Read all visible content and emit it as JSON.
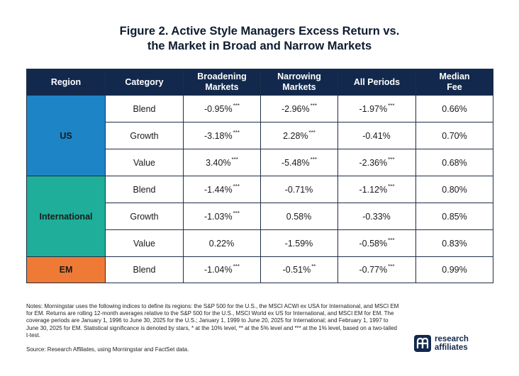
{
  "title": {
    "line1": "Figure 2. Active Style Managers Excess Return vs.",
    "line2": "the Market in Broad and Narrow Markets"
  },
  "table": {
    "headers": {
      "region": "Region",
      "category": "Category",
      "broadening_1": "Broadening",
      "broadening_2": "Markets",
      "narrowing_1": "Narrowing",
      "narrowing_2": "Markets",
      "all_periods": "All Periods",
      "median_1": "Median",
      "median_2": "Fee"
    },
    "regions": {
      "us": {
        "name": "US",
        "color": "#1d84c6"
      },
      "international": {
        "name": "International",
        "color": "#1fae9a"
      },
      "em": {
        "name": "EM",
        "color": "#ef7a36"
      }
    },
    "rows": [
      {
        "category": "Blend",
        "broad": {
          "v": "-0.95%",
          "s": "***"
        },
        "narrow": {
          "v": "-2.96%",
          "s": "***"
        },
        "all": {
          "v": "-1.97%",
          "s": "***"
        },
        "fee": "0.66%"
      },
      {
        "category": "Growth",
        "broad": {
          "v": "-3.18%",
          "s": "***"
        },
        "narrow": {
          "v": "2.28%",
          "s": "***"
        },
        "all": {
          "v": "-0.41%",
          "s": ""
        },
        "fee": "0.70%"
      },
      {
        "category": "Value",
        "broad": {
          "v": "3.40%",
          "s": "***"
        },
        "narrow": {
          "v": "-5.48%",
          "s": "***"
        },
        "all": {
          "v": "-2.36%",
          "s": "***"
        },
        "fee": "0.68%"
      },
      {
        "category": "Blend",
        "broad": {
          "v": "-1.44%",
          "s": "***"
        },
        "narrow": {
          "v": "-0.71%",
          "s": ""
        },
        "all": {
          "v": "-1.12%",
          "s": "***"
        },
        "fee": "0.80%"
      },
      {
        "category": "Growth",
        "broad": {
          "v": "-1.03%",
          "s": "***"
        },
        "narrow": {
          "v": "0.58%",
          "s": ""
        },
        "all": {
          "v": "-0.33%",
          "s": ""
        },
        "fee": "0.85%"
      },
      {
        "category": "Value",
        "broad": {
          "v": "0.22%",
          "s": ""
        },
        "narrow": {
          "v": "-1.59%",
          "s": ""
        },
        "all": {
          "v": "-0.58%",
          "s": "***"
        },
        "fee": "0.83%"
      },
      {
        "category": "Blend",
        "broad": {
          "v": "-1.04%",
          "s": "***"
        },
        "narrow": {
          "v": "-0.51%",
          "s": "**"
        },
        "all": {
          "v": "-0.77%",
          "s": "***"
        },
        "fee": "0.99%"
      }
    ]
  },
  "notes": "Notes: Morningstar uses the following indices to define its regions: the S&P 500 for the U.S., the MSCI ACWI ex USA for International, and MSCI EM for EM. Returns are rolling 12-month averages relative to the S&P 500 for the U.S., MSCI World ex US for International, and MSCI EM for EM. The coverage periods are January 1, 1996 to June 30, 2025 for the U.S.; January 1, 1999 to June 20, 2025 for International; and February 1, 1997 to June 30, 2025 for EM. Statistical significance is denoted by stars, * at the 10% level, ** at the 5% level and *** at the 1% level, based on a two-tailed t-test.",
  "source": "Source: Research Affiliates, using Morningstar and FactSet data.",
  "logo": {
    "line1": "research",
    "line2": "affiliates",
    "color": "#12294d"
  }
}
